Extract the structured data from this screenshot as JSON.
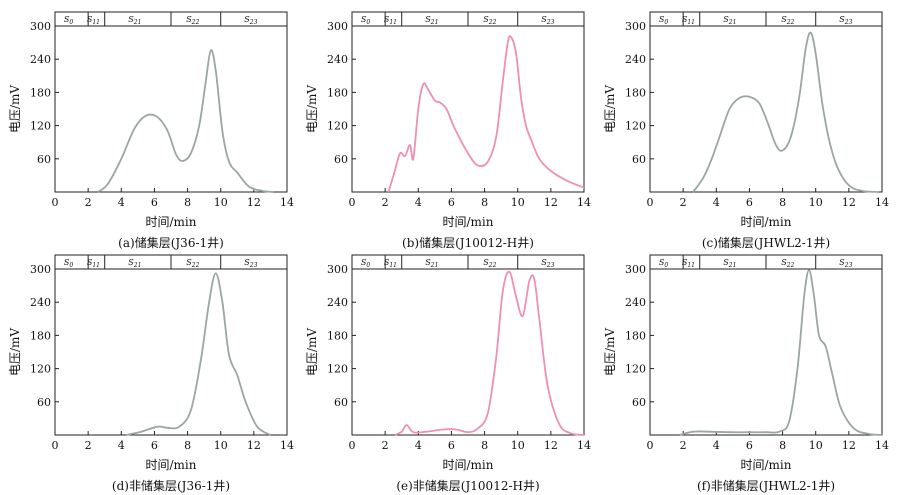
{
  "panels": [
    {
      "caption": "(a)储集层(J36-1井)",
      "segments": [
        {
          "base": "S",
          "sub": "0"
        },
        {
          "base": "S",
          "sub": "11"
        },
        {
          "base": "S",
          "sub": "21"
        },
        {
          "base": "S",
          "sub": "22"
        },
        {
          "base": "S",
          "sub": "23"
        }
      ],
      "color": "#9aa6a2"
    },
    {
      "caption": "(b)储集层(J10012-H井)",
      "segments": [
        {
          "base": "S",
          "sub": "0"
        },
        {
          "base": "S",
          "sub": "11"
        },
        {
          "base": "S",
          "sub": "21"
        },
        {
          "base": "S",
          "sub": "22"
        },
        {
          "base": "S",
          "sub": "23"
        }
      ],
      "color": "#ee8fb5"
    },
    {
      "caption": "(c)储集层(JHWL2-1井)",
      "segments": [
        {
          "base": "S",
          "sub": "0"
        },
        {
          "base": "S",
          "sub": "11"
        },
        {
          "base": "S",
          "sub": "21"
        },
        {
          "base": "S",
          "sub": "22"
        },
        {
          "base": "S",
          "sub": "23"
        }
      ],
      "color": "#9aa6a2"
    },
    {
      "caption": "(d)非储集层(J36-1井)",
      "segments": [
        {
          "base": "S",
          "sub": "0"
        },
        {
          "base": "S",
          "sub": "11"
        },
        {
          "base": "S",
          "sub": "21"
        },
        {
          "base": "S",
          "sub": "22"
        },
        {
          "base": "S",
          "sub": "23"
        }
      ],
      "color": "#9aa6a2"
    },
    {
      "caption": "(e)非储集层(J10012-H井)",
      "segments": [
        {
          "base": "S",
          "sub": "0"
        },
        {
          "base": "S",
          "sub": "11"
        },
        {
          "base": "S",
          "sub": "21"
        },
        {
          "base": "S",
          "sub": "22"
        },
        {
          "base": "S",
          "sub": "23"
        }
      ],
      "color": "#ee8fb5"
    },
    {
      "caption": "(f)非储集层(JHWL2-1井)",
      "segments": [
        {
          "base": "S",
          "sub": "0"
        },
        {
          "base": "S",
          "sub": "11"
        },
        {
          "base": "S",
          "sub": "21"
        },
        {
          "base": "S",
          "sub": "22"
        },
        {
          "base": "S",
          "sub": "23"
        }
      ],
      "color": "#9aa6a2"
    }
  ],
  "chart_data": [
    {
      "type": "line",
      "xlabel": "时间/min",
      "ylabel": "电压/mV",
      "xlim": [
        0,
        14
      ],
      "ylim": [
        0,
        300
      ],
      "xticks": [
        0,
        2,
        4,
        6,
        8,
        10,
        12,
        14
      ],
      "yticks": [
        60,
        120,
        180,
        240,
        300
      ],
      "segment_bounds": [
        0,
        2,
        3,
        7,
        10,
        14
      ],
      "series": [
        {
          "x": [
            2.6,
            3.2,
            4,
            4.8,
            5.5,
            6.2,
            6.8,
            7.3,
            7.7,
            8.2,
            8.7,
            9.1,
            9.4,
            9.7,
            10.1,
            10.5,
            11,
            11.7,
            12.5,
            13.2
          ],
          "y": [
            0,
            15,
            60,
            115,
            138,
            135,
            110,
            68,
            56,
            70,
            120,
            200,
            256,
            220,
            110,
            55,
            35,
            10,
            2,
            0
          ]
        }
      ]
    },
    {
      "type": "line",
      "xlabel": "时间/min",
      "ylabel": "电压/mV",
      "xlim": [
        0,
        14
      ],
      "ylim": [
        0,
        300
      ],
      "xticks": [
        0,
        2,
        4,
        6,
        8,
        10,
        12,
        14
      ],
      "yticks": [
        60,
        120,
        180,
        240,
        300
      ],
      "segment_bounds": [
        0,
        2,
        3,
        7,
        10,
        14
      ],
      "series": [
        {
          "x": [
            2.2,
            2.6,
            2.9,
            3.2,
            3.5,
            3.7,
            4,
            4.3,
            4.6,
            5,
            5.3,
            5.7,
            6.2,
            7,
            7.6,
            8.2,
            8.7,
            9.1,
            9.4,
            9.6,
            9.9,
            10.2,
            10.5,
            10.8,
            11.3,
            12,
            13,
            14
          ],
          "y": [
            0,
            40,
            70,
            65,
            85,
            60,
            150,
            195,
            185,
            165,
            162,
            150,
            115,
            70,
            48,
            55,
            100,
            200,
            270,
            280,
            250,
            170,
            120,
            95,
            60,
            38,
            20,
            8
          ]
        }
      ]
    },
    {
      "type": "line",
      "xlabel": "时间/min",
      "ylabel": "电压/mV",
      "xlim": [
        0,
        14
      ],
      "ylim": [
        0,
        300
      ],
      "xticks": [
        0,
        2,
        4,
        6,
        8,
        10,
        12,
        14
      ],
      "yticks": [
        60,
        120,
        180,
        240,
        300
      ],
      "segment_bounds": [
        0,
        2,
        3,
        7,
        10,
        14
      ],
      "series": [
        {
          "x": [
            2.6,
            3.2,
            3.7,
            4.2,
            4.8,
            5.4,
            6,
            6.6,
            7.1,
            7.6,
            8,
            8.5,
            9,
            9.4,
            9.7,
            10,
            10.4,
            10.8,
            11.3,
            12,
            12.8,
            13.8
          ],
          "y": [
            0,
            25,
            58,
            100,
            150,
            170,
            172,
            160,
            125,
            85,
            75,
            100,
            170,
            260,
            288,
            250,
            160,
            95,
            45,
            12,
            2,
            0
          ]
        }
      ]
    },
    {
      "type": "line",
      "xlabel": "时间/min",
      "ylabel": "电压/mV",
      "xlim": [
        0,
        14
      ],
      "ylim": [
        0,
        300
      ],
      "xticks": [
        0,
        2,
        4,
        6,
        8,
        10,
        12,
        14
      ],
      "yticks": [
        60,
        120,
        180,
        240,
        300
      ],
      "segment_bounds": [
        0,
        2,
        3,
        7,
        10,
        14
      ],
      "series": [
        {
          "x": [
            4.3,
            5.2,
            6.2,
            6.8,
            7.5,
            8.2,
            8.8,
            9.3,
            9.7,
            10.1,
            10.5,
            11,
            11.5,
            12.2,
            13
          ],
          "y": [
            0,
            6,
            15,
            13,
            15,
            45,
            135,
            240,
            292,
            240,
            145,
            108,
            60,
            15,
            0
          ]
        }
      ]
    },
    {
      "type": "line",
      "xlabel": "时间/min",
      "ylabel": "电压/mV",
      "xlim": [
        0,
        14
      ],
      "ylim": [
        0,
        300
      ],
      "xticks": [
        0,
        2,
        4,
        6,
        8,
        10,
        12,
        14
      ],
      "yticks": [
        60,
        120,
        180,
        240,
        300
      ],
      "segment_bounds": [
        0,
        2,
        3,
        7,
        10,
        14
      ],
      "series": [
        {
          "x": [
            2.6,
            3,
            3.3,
            3.7,
            4.5,
            5.5,
            6.3,
            7,
            7.6,
            8.2,
            8.7,
            9.1,
            9.5,
            9.9,
            10.3,
            10.7,
            11,
            11.3,
            11.8,
            12.5,
            13.2,
            14
          ],
          "y": [
            0,
            6,
            18,
            5,
            6,
            10,
            10,
            5,
            12,
            40,
            140,
            260,
            295,
            250,
            215,
            278,
            282,
            210,
            90,
            20,
            3,
            0
          ]
        }
      ]
    },
    {
      "type": "line",
      "xlabel": "时间/min",
      "ylabel": "电压/mV",
      "xlim": [
        0,
        14
      ],
      "ylim": [
        0,
        300
      ],
      "xticks": [
        0,
        2,
        4,
        6,
        8,
        10,
        12,
        14
      ],
      "yticks": [
        60,
        120,
        180,
        240,
        300
      ],
      "segment_bounds": [
        0,
        2,
        3,
        7,
        10,
        14
      ],
      "series": [
        {
          "x": [
            1.8,
            2.6,
            3.6,
            4.8,
            6,
            7,
            7.8,
            8.4,
            8.9,
            9.3,
            9.6,
            9.9,
            10.2,
            10.6,
            11,
            11.5,
            12.3,
            13.2,
            14
          ],
          "y": [
            0,
            6,
            6,
            5,
            5,
            5,
            6,
            25,
            120,
            250,
            298,
            250,
            180,
            160,
            110,
            50,
            12,
            2,
            0
          ]
        }
      ]
    }
  ]
}
